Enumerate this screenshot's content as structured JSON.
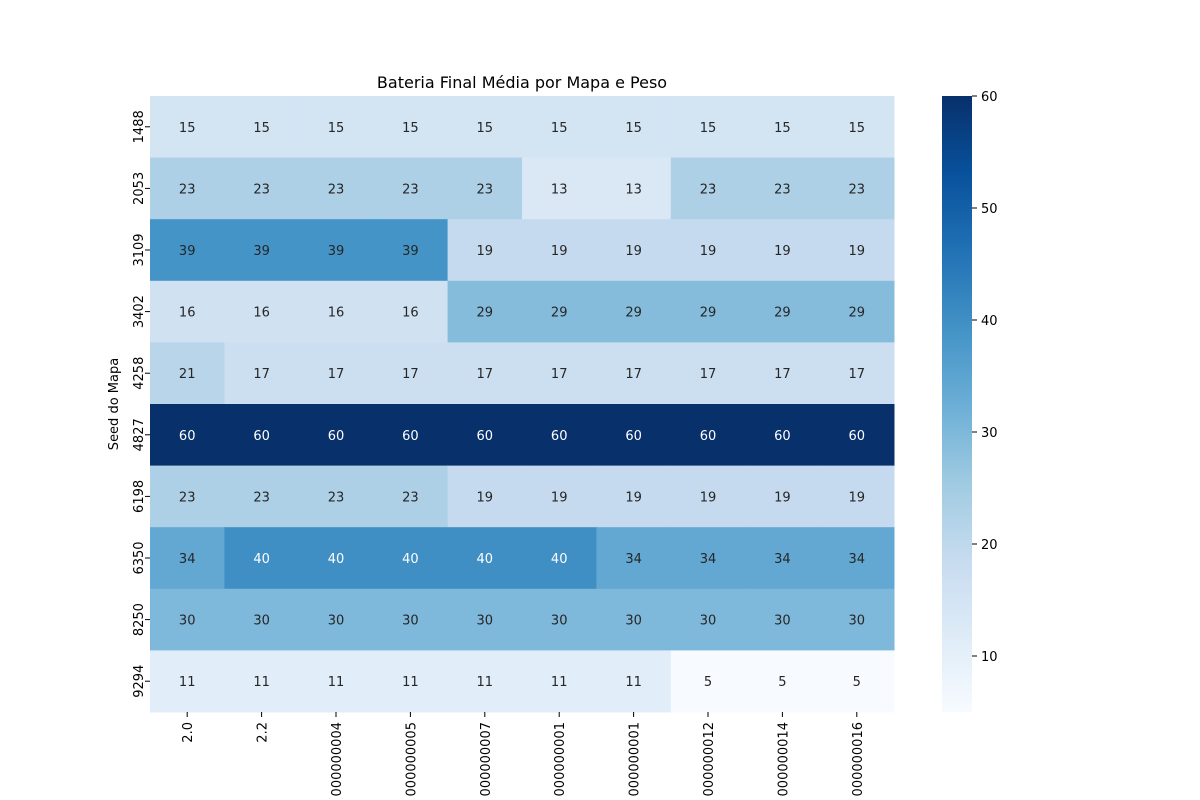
{
  "chart_data": {
    "type": "heatmap",
    "title": "Bateria Final Média por Mapa e Peso",
    "xlabel": "",
    "ylabel": "Seed do Mapa",
    "x_categories": [
      "2.0",
      "2.2",
      "000000004",
      "000000005",
      "000000007",
      "000000001",
      "000000001",
      "000000012",
      "000000014",
      "000000016"
    ],
    "y_categories": [
      "1488",
      "2053",
      "3109",
      "3402",
      "4258",
      "4827",
      "6198",
      "6350",
      "8250",
      "9294"
    ],
    "values": [
      [
        15,
        15,
        15,
        15,
        15,
        15,
        15,
        15,
        15,
        15
      ],
      [
        23,
        23,
        23,
        23,
        23,
        13,
        13,
        23,
        23,
        23
      ],
      [
        39,
        39,
        39,
        39,
        19,
        19,
        19,
        19,
        19,
        19
      ],
      [
        16,
        16,
        16,
        16,
        29,
        29,
        29,
        29,
        29,
        29
      ],
      [
        21,
        17,
        17,
        17,
        17,
        17,
        17,
        17,
        17,
        17
      ],
      [
        60,
        60,
        60,
        60,
        60,
        60,
        60,
        60,
        60,
        60
      ],
      [
        23,
        23,
        23,
        23,
        19,
        19,
        19,
        19,
        19,
        19
      ],
      [
        34,
        40,
        40,
        40,
        40,
        40,
        34,
        34,
        34,
        34
      ],
      [
        30,
        30,
        30,
        30,
        30,
        30,
        30,
        30,
        30,
        30
      ],
      [
        11,
        11,
        11,
        11,
        11,
        11,
        11,
        5,
        5,
        5
      ]
    ],
    "colormap": "Blues",
    "colorbar": {
      "min": 5,
      "max": 60,
      "ticks": [
        10,
        20,
        30,
        40,
        50,
        60
      ]
    },
    "annotations": true
  }
}
